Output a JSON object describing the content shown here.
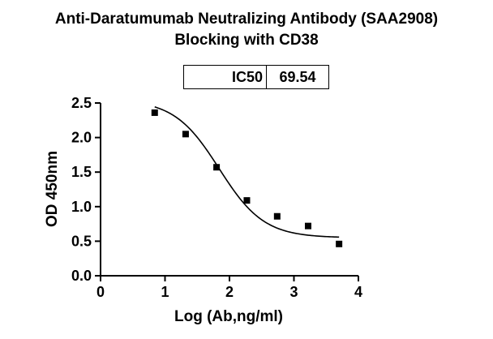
{
  "chart_data": {
    "type": "scatter",
    "title_line1": "Anti-Daratumumab Neutralizing Antibody (SAA2908)",
    "title_line2": "Blocking with CD38",
    "xlabel": "Log (Ab,ng/ml)",
    "ylabel": "OD 450nm",
    "xlim": [
      0,
      4
    ],
    "ylim": [
      0,
      2.5
    ],
    "x_ticks": [
      0,
      1,
      2,
      3,
      4
    ],
    "x_tick_labels": [
      "0",
      "1",
      "2",
      "3",
      "4"
    ],
    "y_ticks": [
      0,
      0.5,
      1.0,
      1.5,
      2.0,
      2.5
    ],
    "y_tick_labels": [
      "0.0",
      "0.5",
      "1.0",
      "1.5",
      "2.0",
      "2.5"
    ],
    "points": [
      {
        "x": 0.84,
        "y": 2.36
      },
      {
        "x": 1.32,
        "y": 2.05
      },
      {
        "x": 1.8,
        "y": 1.57
      },
      {
        "x": 2.27,
        "y": 1.09
      },
      {
        "x": 2.74,
        "y": 0.86
      },
      {
        "x": 3.22,
        "y": 0.72
      },
      {
        "x": 3.7,
        "y": 0.46
      }
    ],
    "fit_curve": {
      "model": "4PL",
      "top": 2.55,
      "bottom": 0.55,
      "log_ic50": 1.84,
      "hill": 1.25,
      "x_range": [
        0.84,
        3.7
      ]
    },
    "ic50_table": {
      "label": "IC50",
      "value": "69.54"
    },
    "grid": false,
    "marker": "square",
    "color": "#000000"
  }
}
